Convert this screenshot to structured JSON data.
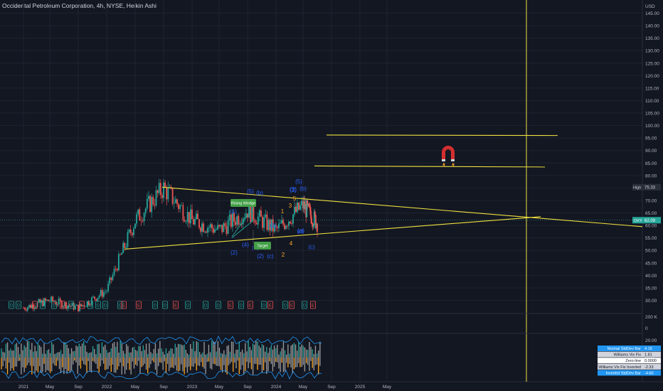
{
  "title": "Occidental Petroleum Corporation, 4h, NYSE, Heikin Ashi",
  "currency": "USD",
  "colors": {
    "background": "#131722",
    "grid": "#1f2330",
    "axis_text": "#b2b5be",
    "trendline": "#f0e040",
    "bull": "#26a69a",
    "bear": "#ef5350",
    "wave_blue": "#2962ff",
    "wave_orange": "#ffa726",
    "label_green": "#43a047",
    "indicator_blue": "#2196f3",
    "indicator_orange": "#ffa726",
    "indicator_gray": "#9e9e9e"
  },
  "chart_data": [
    {
      "type": "candlestick",
      "name": "price_pane",
      "y_axis_ticks": [
        30,
        35,
        40,
        45,
        50,
        55,
        60,
        65,
        70,
        75,
        80,
        85,
        90,
        95,
        100,
        105,
        110,
        115,
        120,
        125,
        130,
        135,
        140,
        145
      ],
      "ylim": [
        25,
        148
      ],
      "x_axis_ticks": [
        "2021",
        "May",
        "Sep",
        "2022",
        "May",
        "Sep",
        "2023",
        "May",
        "Sep",
        "2024",
        "May",
        "Sep",
        "2025",
        "May"
      ],
      "price_path": [
        [
          "2021",
          27
        ],
        [
          "May",
          30
        ],
        [
          "Sep",
          27
        ],
        [
          "2022",
          34
        ],
        [
          "May",
          62
        ],
        [
          "Sep",
          75
        ],
        [
          "2023",
          62
        ],
        [
          "May",
          58
        ],
        [
          "Sep",
          66
        ],
        [
          "2024",
          58
        ],
        [
          "May",
          68
        ],
        [
          "Aug",
          61
        ]
      ],
      "last_price": "62.09",
      "price_tag": "OXY",
      "high_label": "High",
      "high_value": "75.33",
      "wave_labels_blue": [
        "(5)",
        "(b)",
        "(4)",
        "(a)",
        "(1)",
        "(2)",
        "(c)",
        "(3)",
        "(1)",
        "(2)",
        "(c)",
        "(5)",
        "(3)",
        "(b)",
        "(a)",
        "(c)"
      ],
      "wave_labels_orange": [
        "1",
        "2",
        "3",
        "4",
        "5"
      ],
      "annotations": [
        "Rising Wedge",
        "Target"
      ],
      "event_markers": [
        "D",
        "D",
        "E",
        "D",
        "D",
        "E",
        "D",
        "E",
        "D",
        "D",
        "D",
        "D",
        "E",
        "E",
        "D",
        "D",
        "E",
        "D",
        "D",
        "D",
        "E",
        "D",
        "E",
        "D",
        "E",
        "D",
        "E",
        "D",
        "E"
      ]
    },
    {
      "type": "area",
      "name": "indicator_pane",
      "y_axis_ticks": [
        200,
        0
      ],
      "y_axis_tick_labels": [
        "200 K",
        "0"
      ],
      "secondary_ticks": [
        20,
        10,
        0
      ],
      "series": [
        {
          "name": "Normal StdDev Bar",
          "value": "4.15"
        },
        {
          "name": "Williams Vix Fix",
          "value": "1.81"
        },
        {
          "name": "Zero-line",
          "value": "0.0000"
        },
        {
          "name": "Williams Vix Fix Inverted",
          "value": "-2.33"
        },
        {
          "name": "Inverted StdDev Bar",
          "value": "-4.60"
        }
      ]
    }
  ]
}
